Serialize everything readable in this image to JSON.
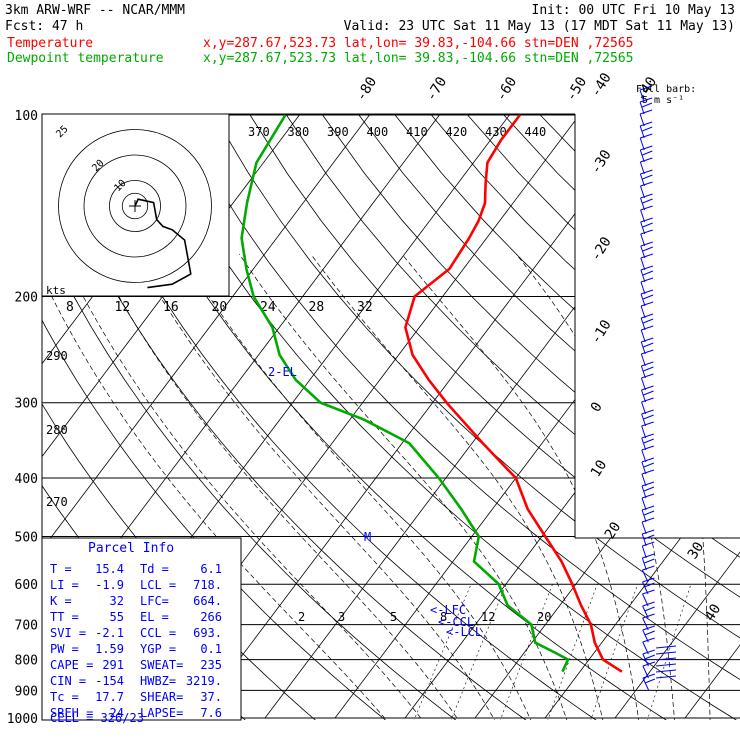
{
  "header": {
    "model": "3km ARW-WRF -- NCAR/MMM",
    "init": "Init: 00 UTC Fri 10 May 13",
    "fcst": "Fcst:   47 h",
    "valid": "Valid: 23 UTC Sat 11 May 13 (17 MDT Sat 11 May 13)",
    "temp_label": "Temperature",
    "temp_info": "x,y=287.67,523.73   lat,lon= 39.83,-104.66  stn=DEN ,72565",
    "dew_label": "Dewpoint temperature",
    "dew_info": "x,y=287.67,523.73   lat,lon= 39.83,-104.66  stn=DEN ,72565",
    "barb_title": "Full barb:",
    "barb_unit": "5 m s⁻¹"
  },
  "colors": {
    "temperature": "#ff0000",
    "dewpoint": "#00aa00",
    "barbs": "#0000ff",
    "label_blue": "#0000ff"
  },
  "parcel": {
    "title": "Parcel Info",
    "rows": [
      [
        "T  =",
        "15.4",
        "Td =",
        "6.1"
      ],
      [
        "LI =",
        "-1.9",
        "LCL =",
        "718."
      ],
      [
        "K  =",
        "32",
        "LFC=",
        "664."
      ],
      [
        "TT =",
        "55",
        "EL =",
        "266"
      ],
      [
        "SVI =",
        "-2.1",
        "CCL =",
        "693."
      ],
      [
        "PW =",
        "1.59",
        "YGP =",
        "0.1"
      ],
      [
        "CAPE =",
        "291",
        "SWEAT=",
        "235"
      ],
      [
        "CIN =",
        "-154",
        "HWBZ=",
        "3219."
      ],
      [
        "Tc =",
        "17.7",
        "SHEAR=",
        "37."
      ],
      [
        "SREH =",
        "24",
        "LAPSE=",
        "7.6"
      ]
    ],
    "cell": "CELL = 326/23"
  },
  "hodograph": {
    "unit": "kts",
    "ring_labels": [
      "25",
      "20",
      "10"
    ],
    "points": [
      [
        0,
        0
      ],
      [
        1,
        2
      ],
      [
        6,
        1
      ],
      [
        7,
        -4
      ],
      [
        9,
        -6
      ],
      [
        12,
        -7
      ],
      [
        16,
        -10
      ],
      [
        17,
        -15
      ],
      [
        18,
        -20
      ],
      [
        12,
        -23
      ],
      [
        4,
        -24
      ]
    ]
  },
  "markers": {
    "el": "EL",
    "m": "M",
    "lfc": "LFC",
    "ccl": "CCL",
    "lcl": "LCL"
  },
  "chart_data": {
    "type": "line",
    "title": "",
    "xlabel": "",
    "ylabel": "",
    "pressure_levels": [
      1000,
      900,
      800,
      700,
      600,
      500,
      400,
      300,
      200,
      100
    ],
    "pressure_ticks": [
      "1000",
      "900",
      "800",
      "700",
      "600",
      "500",
      "400",
      "300",
      "200",
      "100"
    ],
    "temperature_ticks_bottom": [
      "-40",
      "-50",
      "-60",
      "-70",
      "-80"
    ],
    "temperature_ticks_right": [
      "-40",
      "-30",
      "-20",
      "-10",
      "0",
      "10",
      "20",
      "30",
      "40"
    ],
    "theta_labels": [
      "370",
      "380",
      "390",
      "400",
      "410",
      "420",
      "430",
      "440"
    ],
    "theta_labels_left": [
      "290",
      "280",
      "270"
    ],
    "mixing_ratio_labels": [
      "2",
      "3",
      "5",
      "8",
      "12",
      "20"
    ],
    "hodo_speed_ticks": [
      "8",
      "12",
      "16",
      "20",
      "24",
      "28",
      "32"
    ],
    "series": [
      {
        "name": "Temperature",
        "points": [
          [
            838,
            16.0
          ],
          [
            800,
            12.0
          ],
          [
            750,
            9.0
          ],
          [
            700,
            6.5
          ],
          [
            650,
            3.0
          ],
          [
            600,
            -0.5
          ],
          [
            550,
            -4.5
          ],
          [
            500,
            -9.5
          ],
          [
            450,
            -15.0
          ],
          [
            400,
            -20.0
          ],
          [
            350,
            -28.5
          ],
          [
            300,
            -38.0
          ],
          [
            275,
            -43.0
          ],
          [
            250,
            -48.0
          ],
          [
            225,
            -52.0
          ],
          [
            200,
            -54.0
          ],
          [
            180,
            -52.0
          ],
          [
            160,
            -52.5
          ],
          [
            150,
            -53.0
          ],
          [
            140,
            -54.0
          ],
          [
            130,
            -56.0
          ],
          [
            120,
            -58.0
          ],
          [
            110,
            -58.5
          ],
          [
            100,
            -58.5
          ]
        ]
      },
      {
        "name": "Dewpoint temperature",
        "points": [
          [
            838,
            7.5
          ],
          [
            800,
            7.0
          ],
          [
            780,
            4.5
          ],
          [
            750,
            0.5
          ],
          [
            700,
            -2.0
          ],
          [
            650,
            -7.5
          ],
          [
            600,
            -11.0
          ],
          [
            550,
            -17.0
          ],
          [
            500,
            -19.0
          ],
          [
            450,
            -24.5
          ],
          [
            400,
            -31.0
          ],
          [
            350,
            -39.0
          ],
          [
            320,
            -48.0
          ],
          [
            300,
            -56.0
          ],
          [
            275,
            -62.0
          ],
          [
            250,
            -67.0
          ],
          [
            225,
            -71.0
          ],
          [
            200,
            -77.0
          ],
          [
            180,
            -81.0
          ],
          [
            160,
            -85.0
          ],
          [
            140,
            -88.0
          ],
          [
            120,
            -91.0
          ],
          [
            100,
            -92.0
          ]
        ]
      }
    ]
  }
}
